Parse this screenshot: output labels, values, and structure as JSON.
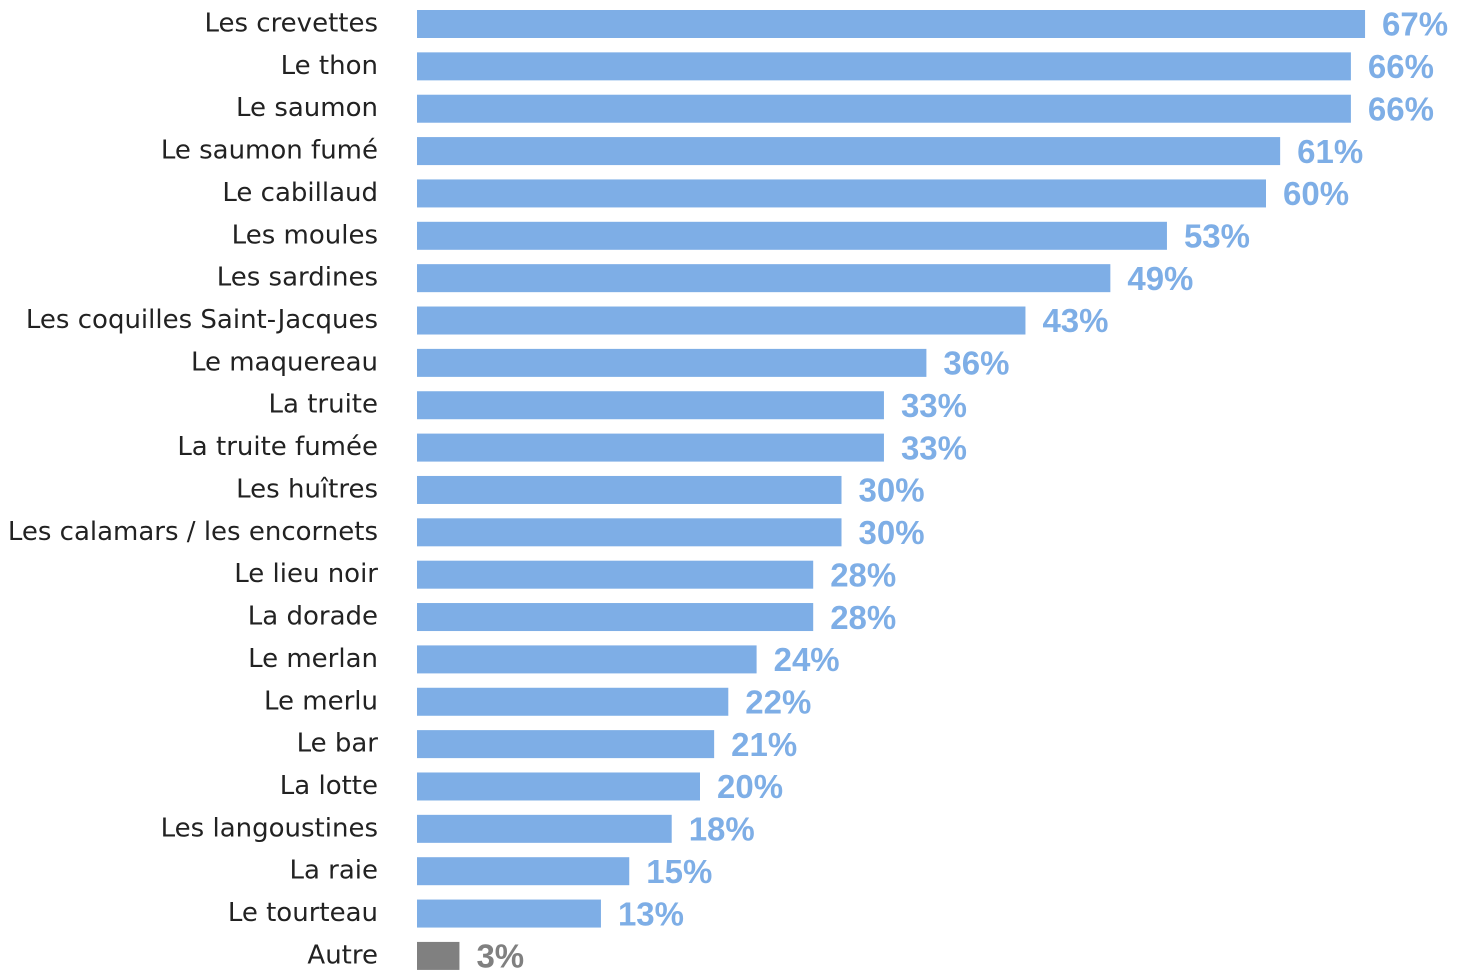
{
  "chart_data": {
    "type": "barh",
    "categories": [
      "Les crevettes",
      "Le thon",
      "Le saumon",
      "Le saumon fumé",
      "Le cabillaud",
      "Les moules",
      "Les sardines",
      "Les coquilles Saint-Jacques",
      "Le maquereau",
      "La truite",
      "La truite fumée",
      "Les huîtres",
      "Les calamars / les encornets",
      "Le lieu noir",
      "La dorade",
      "Le merlan",
      "Le merlu",
      "Le bar",
      "La lotte",
      "Les langoustines",
      "La raie",
      "Le tourteau",
      "Autre"
    ],
    "values": [
      67,
      66,
      66,
      61,
      60,
      53,
      49,
      43,
      36,
      33,
      33,
      30,
      30,
      28,
      28,
      24,
      22,
      21,
      20,
      18,
      15,
      13,
      3
    ],
    "value_labels": [
      "67%",
      "66%",
      "66%",
      "61%",
      "60%",
      "53%",
      "49%",
      "43%",
      "36%",
      "33%",
      "33%",
      "30%",
      "30%",
      "28%",
      "28%",
      "24%",
      "22%",
      "21%",
      "20%",
      "18%",
      "15%",
      "13%",
      "3%"
    ],
    "colors": [
      "#7eaee6",
      "#7eaee6",
      "#7eaee6",
      "#7eaee6",
      "#7eaee6",
      "#7eaee6",
      "#7eaee6",
      "#7eaee6",
      "#7eaee6",
      "#7eaee6",
      "#7eaee6",
      "#7eaee6",
      "#7eaee6",
      "#7eaee6",
      "#7eaee6",
      "#7eaee6",
      "#7eaee6",
      "#7eaee6",
      "#7eaee6",
      "#7eaee6",
      "#7eaee6",
      "#7eaee6",
      "#808080"
    ]
  }
}
